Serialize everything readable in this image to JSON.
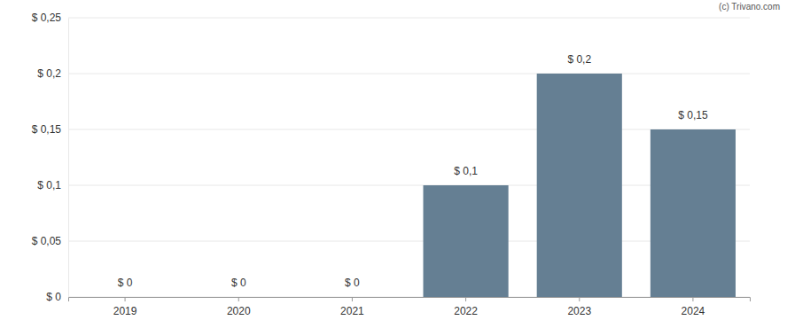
{
  "chart_data": {
    "type": "bar",
    "annotations": [
      "(c) Trivano.com"
    ],
    "categories": [
      "2019",
      "2020",
      "2021",
      "2022",
      "2023",
      "2024"
    ],
    "values": [
      0,
      0,
      0,
      0.1,
      0.2,
      0.15
    ],
    "value_labels": [
      "$ 0",
      "$ 0",
      "$ 0",
      "$ 0,1",
      "$ 0,2",
      "$ 0,15"
    ],
    "data_labels": true,
    "color": "#657f93",
    "ylim": [
      0,
      0.25
    ],
    "yticks": [
      {
        "value": 0,
        "label": "$ 0"
      },
      {
        "value": 0.05,
        "label": "$ 0,05"
      },
      {
        "value": 0.1,
        "label": "$ 0,1"
      },
      {
        "value": 0.15,
        "label": "$ 0,15"
      },
      {
        "value": 0.2,
        "label": "$ 0,2"
      },
      {
        "value": 0.25,
        "label": "$ 0,25"
      }
    ],
    "grid": true
  }
}
